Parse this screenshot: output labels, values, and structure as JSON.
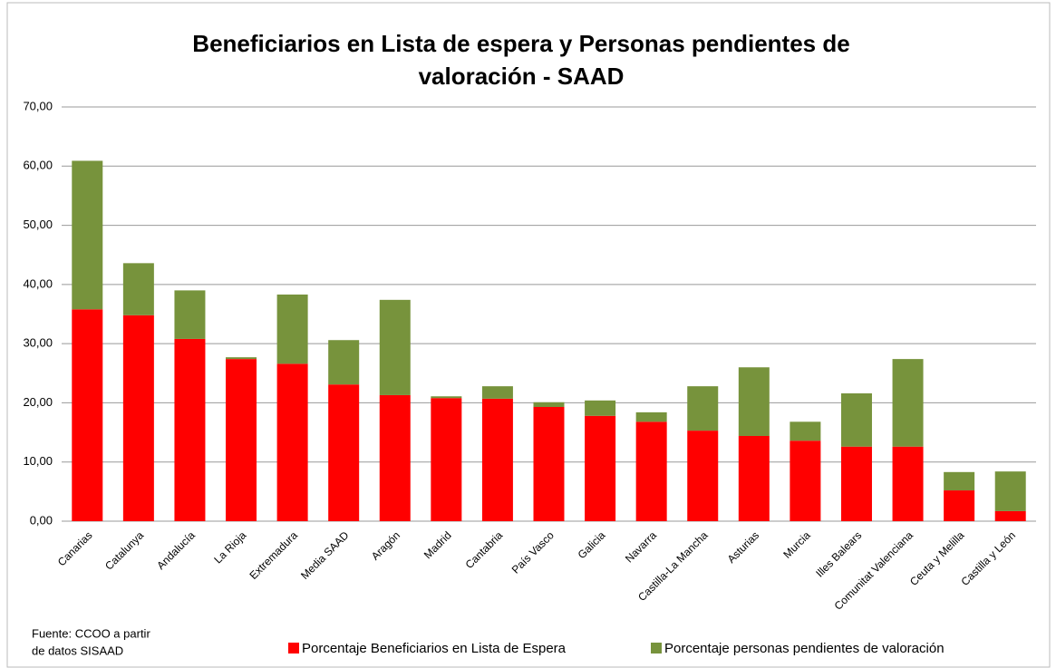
{
  "chart_data": {
    "type": "stacked_bar",
    "title": "Beneficiarios en Lista de espera y Personas pendientes de valoración - SAAD",
    "categories": [
      "Canarias",
      "Catalunya",
      "Andalucía",
      "La Rioja",
      "Extremadura",
      "Media SAAD",
      "Aragón",
      "Madrid",
      "Cantabria",
      "País Vasco",
      "Galicia",
      "Navarra",
      "Castilla-La Mancha",
      "Asturias",
      "Murcia",
      "Illes Balears",
      "Comunitat Valenciana",
      "Ceuta y Melilla",
      "Castilla y León"
    ],
    "series": [
      {
        "name": "Porcentaje Beneficiarios en Lista de Espera",
        "color": "#ff0000",
        "values": [
          35.8,
          34.8,
          30.8,
          27.4,
          26.6,
          23.1,
          21.3,
          20.8,
          20.7,
          19.3,
          17.8,
          16.8,
          15.3,
          14.4,
          13.6,
          12.6,
          12.6,
          5.2,
          1.7
        ]
      },
      {
        "name": "Porcentaje personas pendientes de valoración",
        "color": "#77933c",
        "values": [
          25.1,
          8.8,
          8.2,
          0.3,
          11.7,
          7.5,
          16.1,
          0.3,
          2.1,
          0.8,
          2.6,
          1.6,
          7.5,
          11.6,
          3.2,
          9.0,
          14.8,
          3.1,
          6.7
        ]
      }
    ],
    "ylim": [
      0,
      70
    ],
    "yticks": [
      {
        "value": 0,
        "label": "0,00"
      },
      {
        "value": 10,
        "label": "10,00"
      },
      {
        "value": 20,
        "label": "20,00"
      },
      {
        "value": 30,
        "label": "30,00"
      },
      {
        "value": 40,
        "label": "40,00"
      },
      {
        "value": 50,
        "label": "50,00"
      },
      {
        "value": 60,
        "label": "60,00"
      },
      {
        "value": 70,
        "label": "70,00"
      }
    ],
    "grid": true,
    "legend": "bottom",
    "source": [
      "Fuente: CCOO a partir",
      "de datos SISAAD"
    ]
  }
}
